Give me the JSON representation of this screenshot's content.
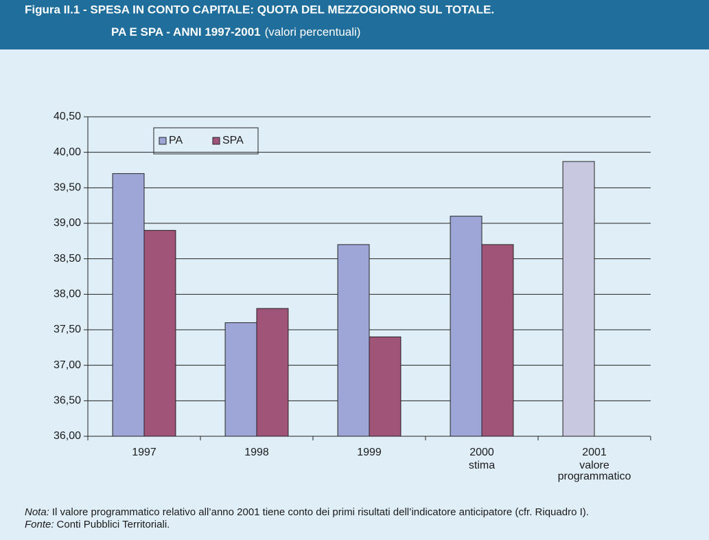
{
  "chart_data": {
    "type": "bar",
    "title_lines": [
      "Figura II.1 - SPESA IN CONTO CAPITALE: QUOTA DEL MEZZOGIORNO SUL TOTALE.",
      "PA E SPA - ANNI 1997-2001"
    ],
    "subtitle": "(valori percentuali)",
    "categories": [
      "1997",
      "1998",
      "1999",
      "2000",
      "2001"
    ],
    "category_notes": [
      null,
      null,
      null,
      [
        "stima"
      ],
      [
        "valore",
        "programmatico"
      ]
    ],
    "series": [
      {
        "name": "PA",
        "color": "#9ea6d8",
        "point_colors": [
          "#9ea6d8",
          "#9ea6d8",
          "#9ea6d8",
          "#9ea6d8",
          "#c8c9e0"
        ],
        "values": [
          39.7,
          37.6,
          38.7,
          39.1,
          39.87
        ]
      },
      {
        "name": "SPA",
        "color": "#a05478",
        "values": [
          38.9,
          37.8,
          37.4,
          38.7,
          null
        ]
      }
    ],
    "ylim": [
      36,
      40.5
    ],
    "yticks": [
      {
        "value": 36,
        "label": "36,00"
      },
      {
        "value": 36.5,
        "label": "36,50"
      },
      {
        "value": 37,
        "label": "37,00"
      },
      {
        "value": 37.5,
        "label": "37,50"
      },
      {
        "value": 38,
        "label": "38,00"
      },
      {
        "value": 38.5,
        "label": "38,50"
      },
      {
        "value": 39,
        "label": "39,00"
      },
      {
        "value": 39.5,
        "label": "39,50"
      },
      {
        "value": 40,
        "label": "40,00"
      },
      {
        "value": 40.5,
        "label": "40,50"
      }
    ],
    "grid": true,
    "legend": "top-left",
    "notes": [
      {
        "label": "Nota:",
        "text": "Il valore programmatico relativo all’anno 2001 tiene conto dei primi risultati dell’indicatore anticipatore (cfr. Riquadro I)."
      },
      {
        "label": "Fonte:",
        "text": "Conti Pubblici Territoriali."
      }
    ]
  }
}
